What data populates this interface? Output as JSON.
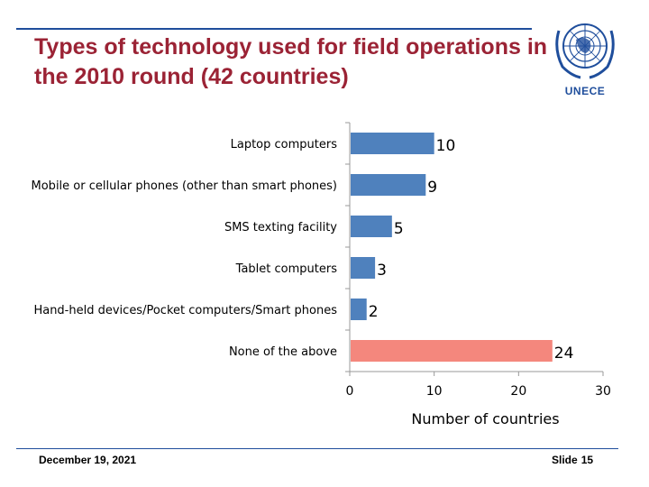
{
  "title": "Types of technology used for field operations in the 2010 round (42 countries)",
  "logo": {
    "text": "UNECE"
  },
  "footer": {
    "date": "December 19, 2021",
    "slide_label": "Slide",
    "slide_number": "15"
  },
  "chart_data": {
    "type": "bar",
    "orientation": "horizontal",
    "categories": [
      "Laptop computers",
      "Mobile or cellular phones (other than smart phones)",
      "SMS texting facility",
      "Tablet computers",
      "Hand-held devices/Pocket computers/Smart phones",
      "None of the above"
    ],
    "values": [
      10,
      9,
      5,
      3,
      2,
      24
    ],
    "bar_colors": [
      "#4f81bd",
      "#4f81bd",
      "#4f81bd",
      "#4f81bd",
      "#4f81bd",
      "#f4877d"
    ],
    "xlabel": "Number of countries",
    "xlim": [
      0,
      30
    ],
    "xticks": [
      0,
      10,
      20,
      30
    ],
    "grid": false,
    "data_labels": true
  }
}
